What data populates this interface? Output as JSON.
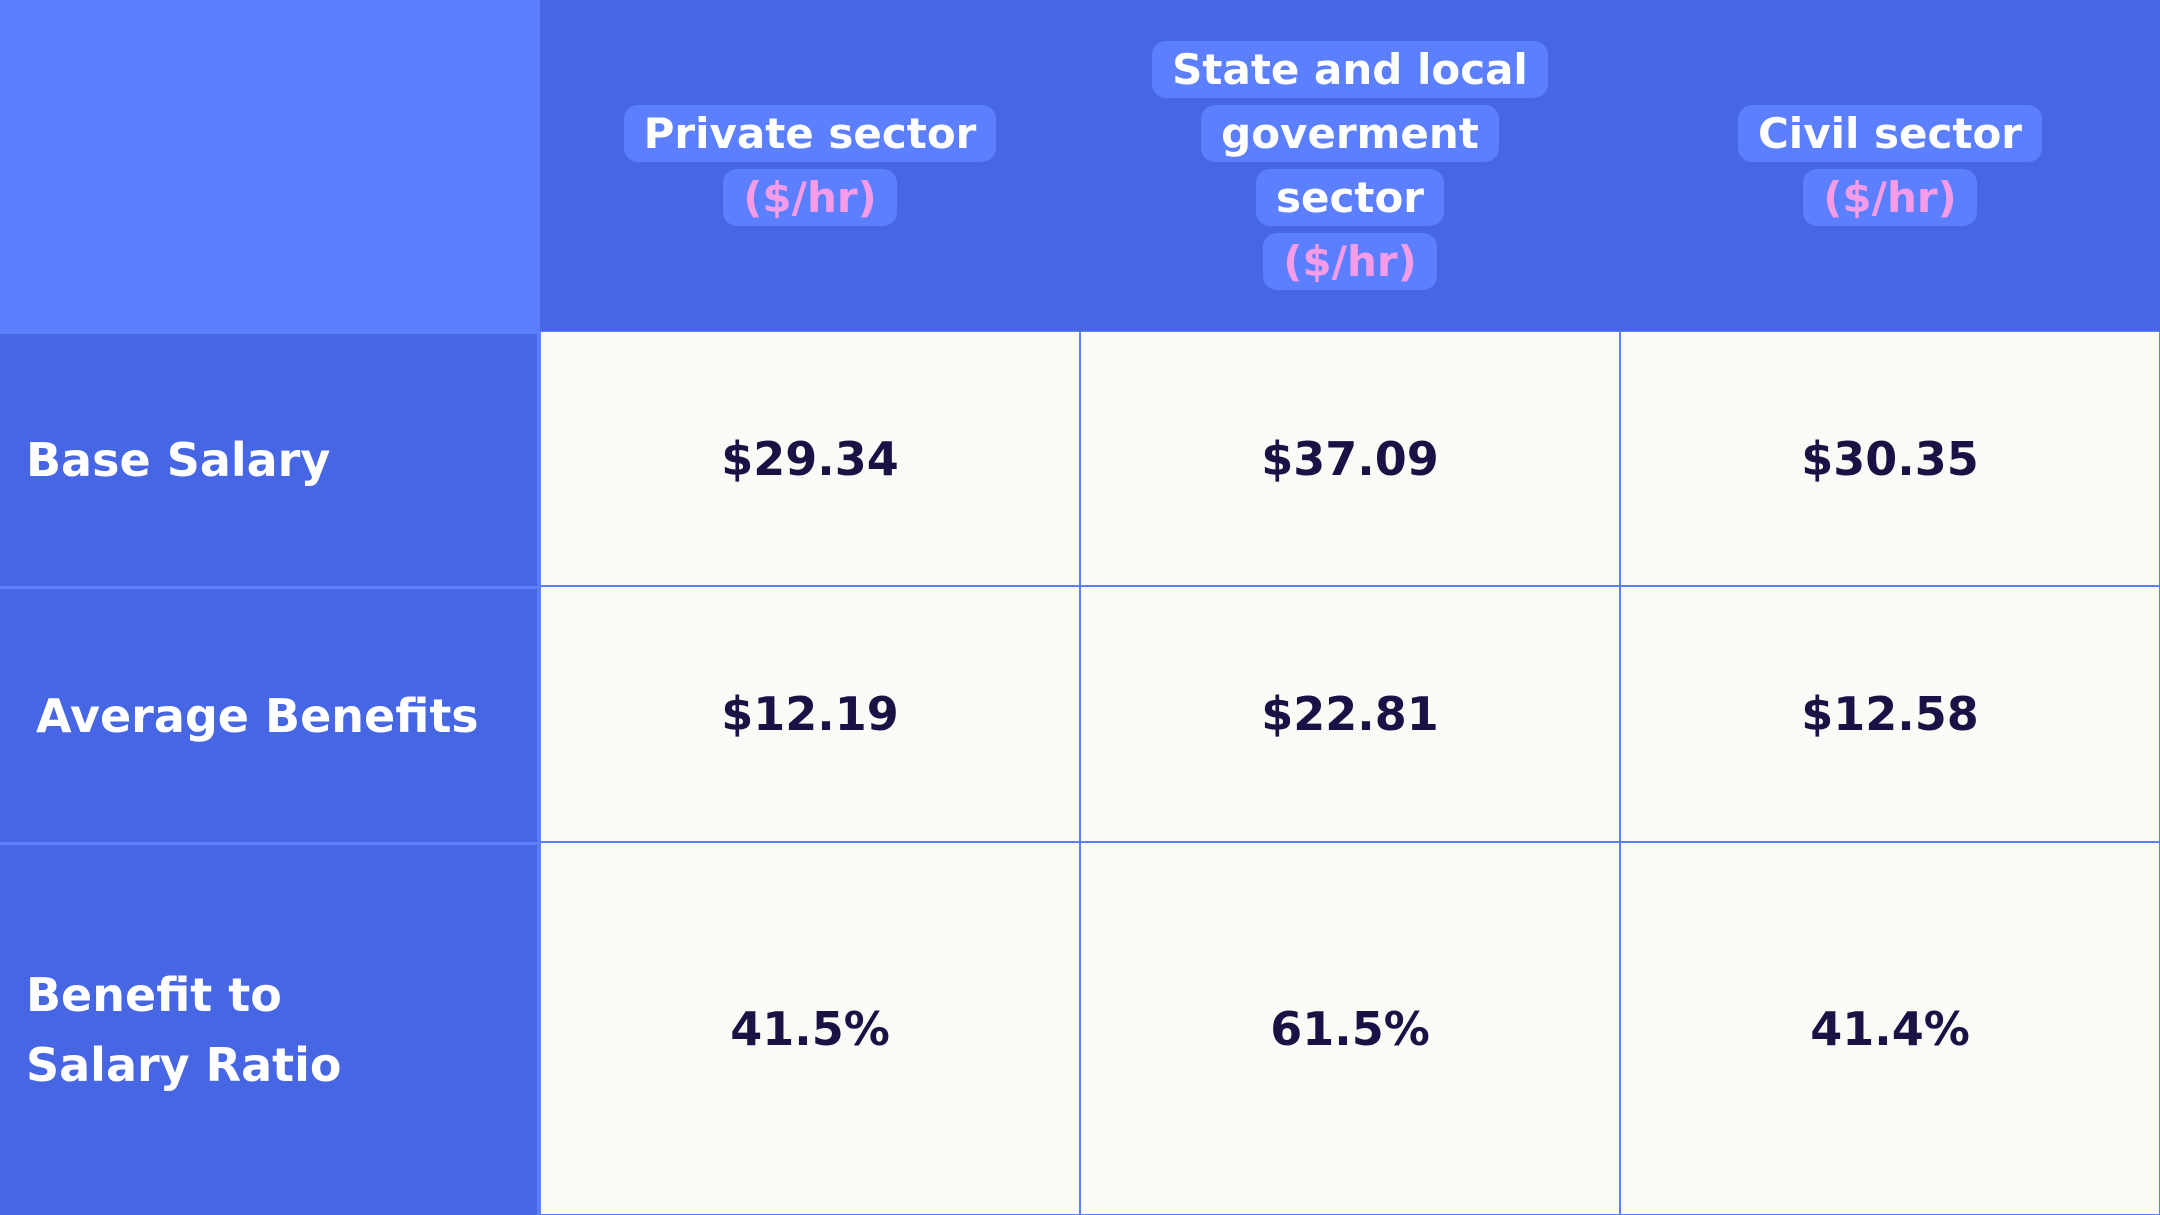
{
  "table": {
    "columns": [
      {
        "name": "Private sector",
        "unit": "($/hr)"
      },
      {
        "name": "State and local goverment sector",
        "unit": "($/hr)"
      },
      {
        "name": "Civil sector",
        "unit": "($/hr)"
      }
    ],
    "rows": [
      {
        "label": "Base Salary",
        "cells": [
          "$29.34",
          "$37.09",
          "$30.35"
        ]
      },
      {
        "label": "Average Benefits",
        "cells": [
          "$12.19",
          "$22.81",
          "$12.58"
        ]
      },
      {
        "label": "Benefit to Salary Ratio",
        "cells": [
          "41.5%",
          "61.5%",
          "41.4%"
        ]
      }
    ]
  }
}
